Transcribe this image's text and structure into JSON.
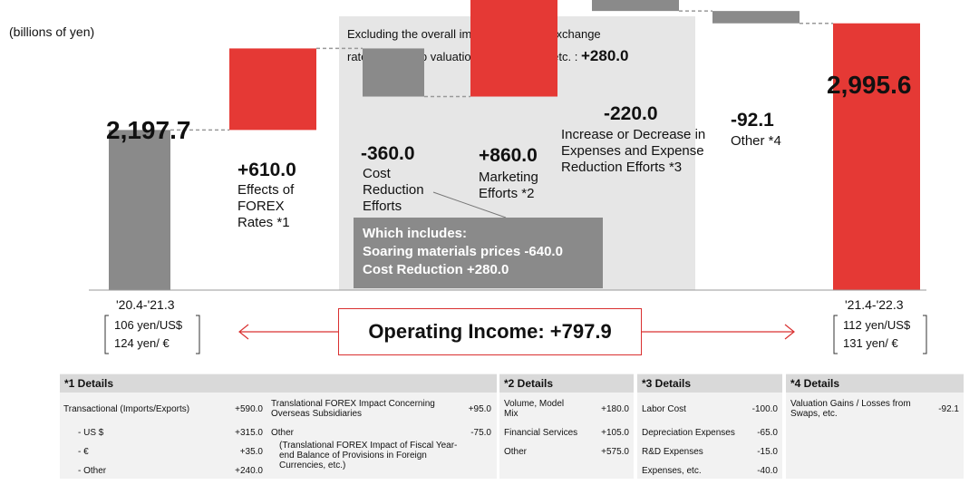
{
  "unit_label": "(billions of yen)",
  "exclusion_note": {
    "line1": "Excluding the overall impact of foreign exchange",
    "line2": "rates and swap valuation gains/losses, etc. :",
    "value": "+280.0"
  },
  "chart_data": {
    "type": "bar",
    "subtype": "waterfall",
    "categories": [
      "'20.4-'21.3",
      "Effects of FOREX Rates *1",
      "Cost Reduction Efforts",
      "Marketing Efforts *2",
      "Increase or Decrease in Expenses and Expense Reduction Efforts *3",
      "Other *4",
      "'21.4-'22.3"
    ],
    "values": [
      2197.7,
      610.0,
      -360.0,
      860.0,
      -220.0,
      -92.1,
      2995.6
    ],
    "value_labels": [
      "2,197.7",
      "+610.0",
      "-360.0",
      "+860.0",
      "-220.0",
      "-92.1",
      "2,995.6"
    ],
    "bar_colors": [
      "#8a8a8a",
      "#e53935",
      "#8a8a8a",
      "#e53935",
      "#8a8a8a",
      "#8a8a8a",
      "#e53935"
    ]
  },
  "bars": {
    "start_value": "2,197.7",
    "start_period": "'20.4-'21.3",
    "start_rates": [
      "106 yen/US$",
      "124 yen/ €"
    ],
    "forex_value": "+610.0",
    "forex_label": [
      "Effects of",
      "FOREX",
      "Rates *1"
    ],
    "cost_value": "-360.0",
    "cost_label": [
      "Cost",
      "Reduction",
      "Efforts"
    ],
    "marketing_value": "+860.0",
    "marketing_label": [
      "Marketing",
      "Efforts *2"
    ],
    "expenses_value": "-220.0",
    "expenses_label": [
      "Increase or Decrease in",
      "Expenses and Expense",
      "Reduction Efforts *3"
    ],
    "other_value": "-92.1",
    "other_label": "Other *4",
    "end_value": "2,995.6",
    "end_period": "'21.4-'22.3",
    "end_rates": [
      "112 yen/US$",
      "131 yen/ €"
    ]
  },
  "includes_box": {
    "title": "Which includes:",
    "line1": "Soaring materials prices -640.0",
    "line2": "Cost Reduction  +280.0"
  },
  "operating_income": "Operating Income: +797.9",
  "details": {
    "d1": {
      "title": "*1 Details",
      "rows": [
        {
          "label": "Transactional (Imports/Exports)",
          "value": "+590.0"
        },
        {
          "label": "- US $",
          "value": "+315.0"
        },
        {
          "label": "- €",
          "value": "+35.0"
        },
        {
          "label": "- Other",
          "value": "+240.0"
        }
      ],
      "right_rows": [
        {
          "label": "Translational FOREX Impact Concerning Overseas Subsidiaries",
          "value": "+95.0"
        },
        {
          "label": "Other",
          "value": "-75.0"
        },
        {
          "label": "(Translational FOREX Impact of Fiscal Year-end Balance of Provisions in Foreign Currencies, etc.)",
          "value": ""
        }
      ]
    },
    "d2": {
      "title": "*2 Details",
      "rows": [
        {
          "label": "Volume, Model Mix",
          "value": "+180.0"
        },
        {
          "label": "Financial Services",
          "value": "+105.0"
        },
        {
          "label": "Other",
          "value": "+575.0"
        }
      ]
    },
    "d3": {
      "title": "*3 Details",
      "rows": [
        {
          "label": "Labor Cost",
          "value": "-100.0"
        },
        {
          "label": "Depreciation Expenses",
          "value": "-65.0"
        },
        {
          "label": "R&D Expenses",
          "value": "-15.0"
        },
        {
          "label": "Expenses, etc.",
          "value": "-40.0"
        }
      ]
    },
    "d4": {
      "title": "*4 Details",
      "rows": [
        {
          "label": "Valuation Gains / Losses from Swaps, etc.",
          "value": "-92.1"
        }
      ]
    }
  }
}
